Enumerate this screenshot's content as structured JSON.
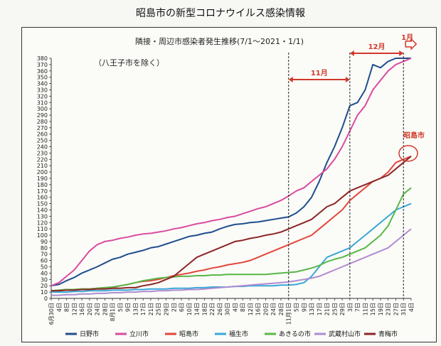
{
  "title": "昭島市の新型コロナウイルス感染情報",
  "chart_data": {
    "type": "line",
    "title": "隣接・周辺市感染者発生推移(7/1～2021・1/1)",
    "subtitle": "（八王子市を除く）",
    "xlabel": "",
    "ylabel": "",
    "ylim": [
      0,
      380
    ],
    "ytick_step": 10,
    "grid": false,
    "legend_position": "bottom",
    "x_tick_labels": [
      "6月30日",
      "4日",
      "8日",
      "12日",
      "16日",
      "20日",
      "24日",
      "28日",
      "8月1日",
      "5日",
      "9日",
      "13日",
      "17日",
      "21日",
      "25日",
      "29日",
      "2日",
      "6日",
      "10日",
      "14日",
      "18日",
      "22日",
      "26日",
      "30日",
      "4日",
      "8日",
      "12日",
      "16日",
      "20日",
      "24日",
      "28日",
      "11月1日",
      "5日",
      "9日",
      "13日",
      "17日",
      "21日",
      "25日",
      "29日",
      "3日",
      "7日",
      "11日",
      "15日",
      "19日",
      "23日",
      "27日",
      "31日",
      "4日"
    ],
    "markers": [
      {
        "label": "11月",
        "from_index": 31,
        "to_index": 39,
        "color": "#d0392b"
      },
      {
        "label": "12月",
        "from_index": 39,
        "to_index": 46,
        "color": "#d0392b"
      },
      {
        "label": "1月",
        "from_index": 46,
        "to_index": 47,
        "color": "#d0392b"
      }
    ],
    "annotation": {
      "label": "昭島市",
      "color": "#d0392b"
    },
    "series": [
      {
        "name": "日野市",
        "color": "#1f4e8c",
        "values": [
          20,
          22,
          28,
          33,
          40,
          45,
          50,
          56,
          62,
          65,
          70,
          73,
          76,
          80,
          82,
          86,
          90,
          94,
          98,
          100,
          103,
          105,
          110,
          114,
          117,
          118,
          120,
          121,
          123,
          125,
          127,
          129,
          135,
          145,
          160,
          185,
          215,
          240,
          270,
          305,
          310,
          330,
          370,
          365,
          375,
          380,
          385,
          390
        ]
      },
      {
        "name": "立川市",
        "color": "#d94c9e",
        "values": [
          20,
          25,
          35,
          45,
          60,
          75,
          85,
          90,
          92,
          95,
          97,
          100,
          102,
          103,
          105,
          107,
          110,
          112,
          115,
          118,
          120,
          123,
          125,
          128,
          130,
          134,
          138,
          142,
          145,
          150,
          155,
          162,
          170,
          175,
          185,
          195,
          205,
          220,
          240,
          265,
          290,
          305,
          330,
          345,
          360,
          370,
          375,
          380
        ]
      },
      {
        "name": "昭島市",
        "color": "#e2463a",
        "values": [
          12,
          13,
          14,
          14,
          15,
          15,
          16,
          17,
          17,
          20,
          22,
          25,
          27,
          28,
          30,
          33,
          36,
          38,
          40,
          43,
          45,
          48,
          50,
          53,
          55,
          57,
          60,
          65,
          70,
          75,
          80,
          85,
          90,
          95,
          100,
          110,
          120,
          130,
          140,
          155,
          165,
          175,
          185,
          190,
          200,
          215,
          220,
          225
        ]
      },
      {
        "name": "福生市",
        "color": "#3aa7d8",
        "values": [
          10,
          10,
          10,
          11,
          11,
          12,
          12,
          12,
          13,
          13,
          13,
          14,
          14,
          15,
          15,
          15,
          16,
          16,
          16,
          17,
          17,
          18,
          18,
          18,
          19,
          19,
          20,
          20,
          20,
          20,
          21,
          21,
          22,
          25,
          35,
          50,
          65,
          70,
          75,
          80,
          90,
          100,
          110,
          120,
          130,
          140,
          145,
          150
        ]
      },
      {
        "name": "あきるの市",
        "color": "#58b847",
        "values": [
          12,
          13,
          14,
          14,
          15,
          15,
          16,
          17,
          18,
          20,
          22,
          25,
          28,
          30,
          32,
          33,
          34,
          35,
          35,
          36,
          36,
          37,
          37,
          38,
          38,
          38,
          38,
          38,
          38,
          39,
          40,
          41,
          42,
          45,
          48,
          52,
          58,
          62,
          65,
          70,
          75,
          80,
          90,
          100,
          115,
          140,
          165,
          175
        ]
      },
      {
        "name": "武蔵村山市",
        "color": "#b08cd0",
        "values": [
          5,
          5,
          6,
          6,
          7,
          7,
          8,
          8,
          9,
          9,
          10,
          10,
          11,
          11,
          12,
          12,
          13,
          13,
          14,
          14,
          15,
          16,
          17,
          18,
          19,
          20,
          21,
          22,
          23,
          24,
          25,
          26,
          28,
          30,
          32,
          35,
          40,
          45,
          50,
          55,
          60,
          65,
          70,
          75,
          80,
          90,
          100,
          110
        ]
      },
      {
        "name": "青梅市",
        "color": "#8b2626",
        "values": [
          12,
          12,
          13,
          13,
          14,
          14,
          15,
          15,
          16,
          16,
          17,
          17,
          20,
          22,
          25,
          30,
          35,
          45,
          55,
          65,
          70,
          75,
          80,
          85,
          90,
          92,
          95,
          97,
          100,
          102,
          105,
          110,
          115,
          120,
          125,
          135,
          145,
          150,
          160,
          170,
          175,
          180,
          185,
          190,
          195,
          205,
          215,
          225
        ]
      }
    ]
  }
}
